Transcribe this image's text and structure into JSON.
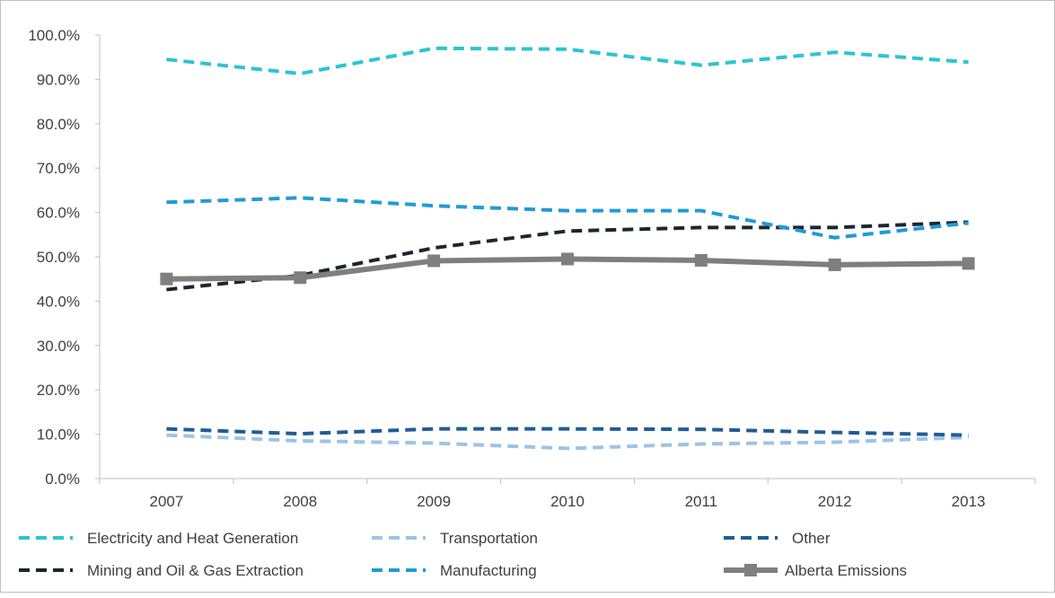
{
  "chart_data": {
    "type": "line",
    "categories": [
      "2007",
      "2008",
      "2009",
      "2010",
      "2011",
      "2012",
      "2013"
    ],
    "ylim": [
      0,
      100
    ],
    "yticks": [
      "0.0%",
      "10.0%",
      "20.0%",
      "30.0%",
      "40.0%",
      "50.0%",
      "60.0%",
      "70.0%",
      "80.0%",
      "90.0%",
      "100.0%"
    ],
    "grid": false,
    "legend_position": "bottom",
    "series": [
      {
        "name": "Electricity and Heat Generation",
        "color": "#2bc5d0",
        "style": "dashed",
        "values": [
          94.5,
          91.3,
          97.0,
          96.8,
          93.2,
          96.1,
          93.9
        ]
      },
      {
        "name": "Transportation",
        "color": "#9dc3e6",
        "style": "dashed",
        "values": [
          9.8,
          8.5,
          8.0,
          6.8,
          7.8,
          8.2,
          9.3
        ]
      },
      {
        "name": "Other",
        "color": "#1f5c99",
        "style": "dashed",
        "values": [
          11.2,
          10.1,
          11.2,
          11.2,
          11.1,
          10.4,
          9.8
        ]
      },
      {
        "name": "Mining and Oil & Gas Extraction",
        "color": "#1b2631",
        "style": "dashed",
        "values": [
          42.6,
          45.8,
          52.0,
          55.8,
          56.6,
          56.6,
          57.8
        ]
      },
      {
        "name": "Manufacturing",
        "color": "#1f9bd7",
        "style": "dashed",
        "values": [
          62.3,
          63.3,
          61.5,
          60.4,
          60.4,
          54.3,
          57.6
        ]
      },
      {
        "name": "Alberta Emissions",
        "color": "#7f7f7f",
        "style": "solid-square-markers",
        "values": [
          45.0,
          45.3,
          49.1,
          49.5,
          49.2,
          48.2,
          48.5
        ]
      }
    ]
  }
}
